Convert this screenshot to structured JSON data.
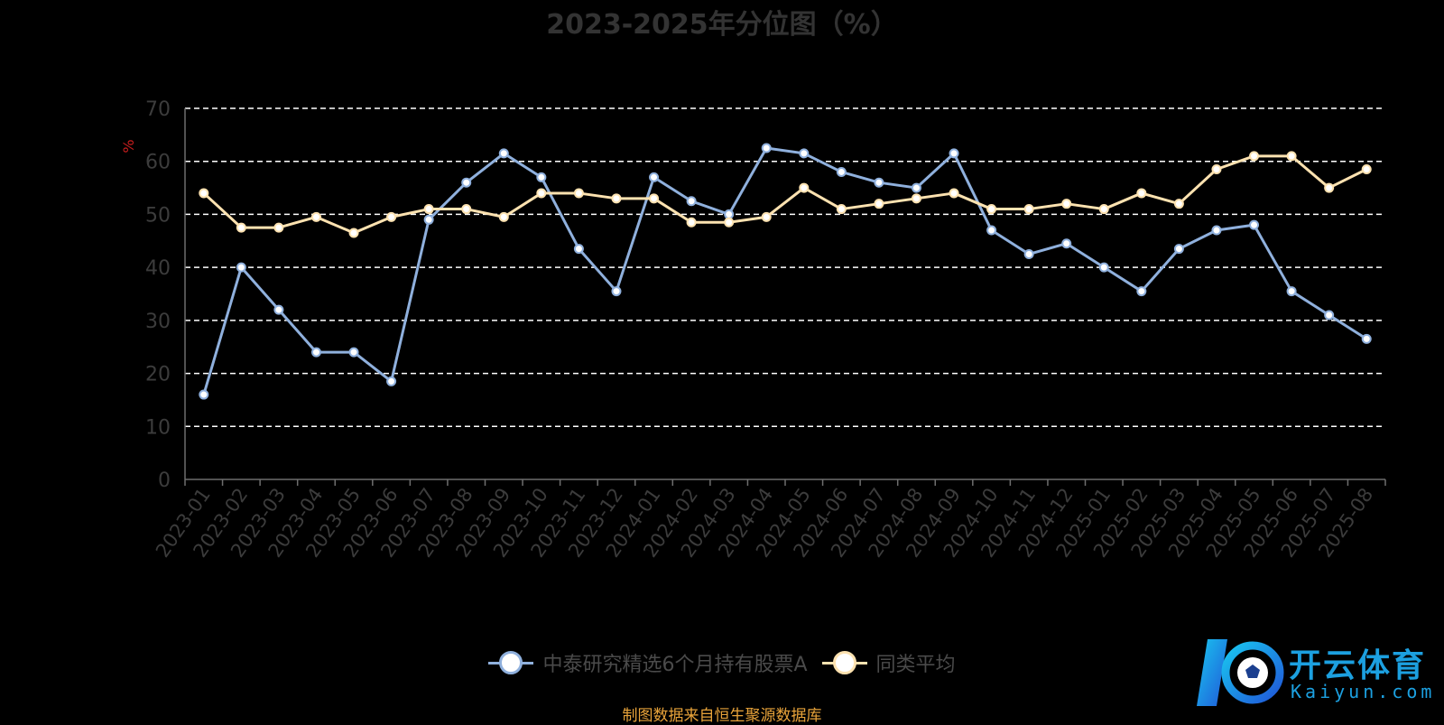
{
  "chart_data": {
    "type": "line",
    "title": "2023-2025年分位图（%）",
    "ylabel": "%",
    "ylim": [
      0,
      70
    ],
    "yticks": [
      0,
      10,
      20,
      30,
      40,
      50,
      60,
      70
    ],
    "grid": true,
    "legend_position": "bottom",
    "categories": [
      "2023-01",
      "2023-02",
      "2023-03",
      "2023-04",
      "2023-05",
      "2023-06",
      "2023-07",
      "2023-08",
      "2023-09",
      "2023-10",
      "2023-11",
      "2023-12",
      "2024-01",
      "2024-02",
      "2024-03",
      "2024-04",
      "2024-05",
      "2024-06",
      "2024-07",
      "2024-08",
      "2024-09",
      "2024-10",
      "2024-11",
      "2024-12",
      "2025-01",
      "2025-02",
      "2025-03",
      "2025-04",
      "2025-05",
      "2025-06",
      "2025-07",
      "2025-08"
    ],
    "series": [
      {
        "name": "中泰研究精选6个月持有股票A",
        "color": "#8fb0dd",
        "values": [
          16,
          40,
          32,
          24,
          24,
          18.5,
          49,
          56,
          61.5,
          57,
          43.5,
          35.5,
          57,
          52.5,
          50,
          62.5,
          61.5,
          58,
          56,
          55,
          61.5,
          47,
          42.5,
          44.5,
          40,
          35.5,
          43.5,
          47,
          48,
          35.5,
          31,
          26.5
        ]
      },
      {
        "name": "同类平均",
        "color": "#fde2b0",
        "values": [
          54,
          47.5,
          47.5,
          49.5,
          46.5,
          49.5,
          51,
          51,
          49.5,
          54,
          54,
          53,
          53,
          48.5,
          48.5,
          49.5,
          55,
          51,
          52,
          53,
          54,
          51,
          51,
          52,
          51,
          54,
          52,
          58.5,
          61,
          61,
          55,
          58.5
        ]
      }
    ]
  },
  "source_note": "制图数据来自恒生聚源数据库",
  "watermark": {
    "brand": "开云体育",
    "domain": "Kaiyun.com"
  }
}
